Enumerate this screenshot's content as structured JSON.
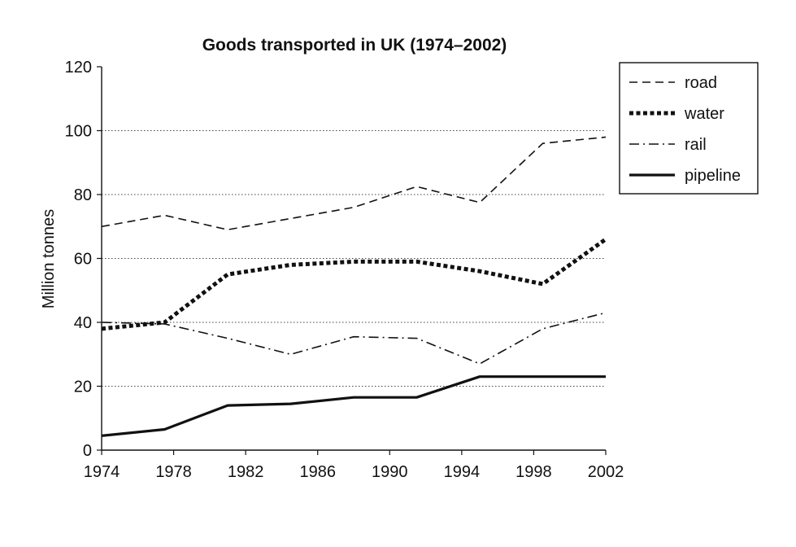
{
  "chart_data": {
    "type": "line",
    "title": "Goods transported in UK (1974–2002)",
    "xlabel": "",
    "ylabel": "Million tonnes",
    "x": [
      1974,
      1978,
      1982,
      1986,
      1990,
      1994,
      1998,
      2002
    ],
    "x_ticks": [
      "1974",
      "1978",
      "1982",
      "1986",
      "1990",
      "1994",
      "1998",
      "2002"
    ],
    "xlim": [
      1974,
      2002
    ],
    "y_ticks": [
      "0",
      "20",
      "40",
      "60",
      "80",
      "100",
      "120"
    ],
    "ylim": [
      0,
      120
    ],
    "grid": "horizontal dotted",
    "legend_position": "right",
    "series": [
      {
        "name": "road",
        "style": "dashed",
        "color": "#111111",
        "points": [
          [
            1974,
            70
          ],
          [
            1977.5,
            73.5
          ],
          [
            1981,
            69
          ],
          [
            1988,
            76
          ],
          [
            1991.5,
            82.5
          ],
          [
            1995,
            77.5
          ],
          [
            1998.5,
            96
          ],
          [
            2002,
            98
          ]
        ]
      },
      {
        "name": "water",
        "style": "dotted-thick",
        "color": "#111111",
        "points": [
          [
            1974,
            38
          ],
          [
            1977.5,
            40
          ],
          [
            1981,
            55
          ],
          [
            1984.5,
            58
          ],
          [
            1988,
            59
          ],
          [
            1991.5,
            59
          ],
          [
            1995,
            56
          ],
          [
            1998.5,
            52
          ],
          [
            2002,
            66
          ]
        ]
      },
      {
        "name": "rail",
        "style": "dash-dot",
        "color": "#111111",
        "points": [
          [
            1974,
            40
          ],
          [
            1977.5,
            39.5
          ],
          [
            1981,
            35
          ],
          [
            1984.5,
            30
          ],
          [
            1988,
            35.5
          ],
          [
            1991.5,
            35
          ],
          [
            1995,
            27
          ],
          [
            1998.5,
            38
          ],
          [
            2002,
            43
          ]
        ]
      },
      {
        "name": "pipeline",
        "style": "solid-thick",
        "color": "#111111",
        "points": [
          [
            1974,
            4.5
          ],
          [
            1977.5,
            6.5
          ],
          [
            1981,
            14
          ],
          [
            1984.5,
            14.5
          ],
          [
            1988,
            16.5
          ],
          [
            1991.5,
            16.5
          ],
          [
            1995,
            23
          ],
          [
            1998.5,
            23
          ],
          [
            2002,
            23
          ]
        ]
      }
    ]
  }
}
